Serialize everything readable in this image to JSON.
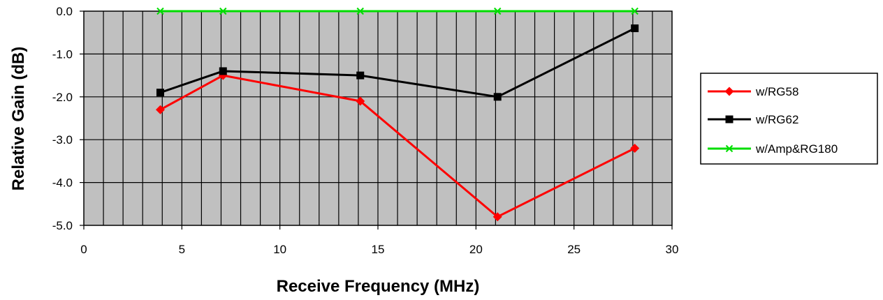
{
  "chart_data": {
    "type": "line",
    "title": "",
    "xlabel": "Receive Frequency (MHz)",
    "ylabel": "Relative Gain (dB)",
    "xlim": [
      0,
      30
    ],
    "ylim": [
      -5.0,
      0.0
    ],
    "x_ticks": [
      "0",
      "5",
      "10",
      "15",
      "20",
      "25",
      "30"
    ],
    "y_ticks": [
      "0.0",
      "-1.0",
      "-2.0",
      "-3.0",
      "-4.0",
      "-5.0"
    ],
    "grid": true,
    "legend_position": "right",
    "plot_background": "#c0c0c0",
    "series": [
      {
        "name": "w/RG58",
        "color": "#ff0000",
        "marker": "diamond",
        "x": [
          3.9,
          7.1,
          14.1,
          21.1,
          28.1
        ],
        "y": [
          -2.3,
          -1.5,
          -2.1,
          -4.8,
          -3.2
        ]
      },
      {
        "name": "w/RG62",
        "color": "#000000",
        "marker": "square",
        "x": [
          3.9,
          7.1,
          14.1,
          21.1,
          28.1
        ],
        "y": [
          -1.9,
          -1.4,
          -1.5,
          -2.0,
          -0.4
        ]
      },
      {
        "name": "w/Amp&RG180",
        "color": "#00dd00",
        "marker": "x",
        "x": [
          3.9,
          7.1,
          14.1,
          21.1,
          28.1
        ],
        "y": [
          0.0,
          0.0,
          0.0,
          0.0,
          0.0
        ]
      }
    ]
  }
}
